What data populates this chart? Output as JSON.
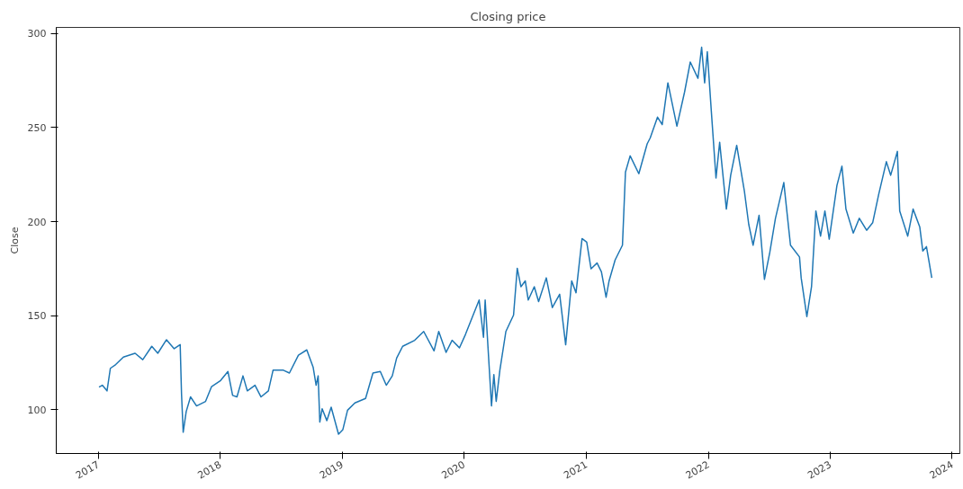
{
  "chart_data": {
    "type": "line",
    "title": "Closing price",
    "ylabel": "Close",
    "x": [
      "2017-01-03",
      "2017-01-13",
      "2017-01-27",
      "2017-02-06",
      "2017-02-22",
      "2017-03-17",
      "2017-04-21",
      "2017-05-14",
      "2017-06-10",
      "2017-06-28",
      "2017-07-24",
      "2017-08-16",
      "2017-09-03",
      "2017-09-07",
      "2017-09-12",
      "2017-09-21",
      "2017-10-04",
      "2017-10-22",
      "2017-11-18",
      "2017-12-06",
      "2018-01-02",
      "2018-01-24",
      "2018-02-07",
      "2018-02-20",
      "2018-03-10",
      "2018-03-23",
      "2018-04-15",
      "2018-05-03",
      "2018-05-25",
      "2018-06-08",
      "2018-07-09",
      "2018-07-27",
      "2018-08-23",
      "2018-09-17",
      "2018-10-06",
      "2018-10-15",
      "2018-10-21",
      "2018-10-26",
      "2018-11-02",
      "2018-11-16",
      "2018-11-29",
      "2018-12-21",
      "2019-01-03",
      "2019-01-17",
      "2019-02-08",
      "2019-03-12",
      "2019-04-03",
      "2019-04-25",
      "2019-05-13",
      "2019-05-31",
      "2019-06-13",
      "2019-07-01",
      "2019-08-06",
      "2019-09-02",
      "2019-10-03",
      "2019-10-17",
      "2019-11-08",
      "2019-11-26",
      "2019-12-18",
      "2020-01-05",
      "2020-01-28",
      "2020-02-15",
      "2020-02-28",
      "2020-03-04",
      "2020-03-23",
      "2020-03-30",
      "2020-04-06",
      "2020-04-17",
      "2020-05-05",
      "2020-05-28",
      "2020-06-08",
      "2020-06-19",
      "2020-07-02",
      "2020-07-11",
      "2020-07-29",
      "2020-08-11",
      "2020-09-03",
      "2020-09-21",
      "2020-10-13",
      "2020-10-31",
      "2020-11-18",
      "2020-12-01",
      "2020-12-19",
      "2021-01-02",
      "2021-01-15",
      "2021-02-02",
      "2021-02-15",
      "2021-03-01",
      "2021-03-10",
      "2021-03-28",
      "2021-04-19",
      "2021-04-28",
      "2021-05-12",
      "2021-06-07",
      "2021-07-02",
      "2021-07-11",
      "2021-08-02",
      "2021-08-16",
      "2021-09-02",
      "2021-09-29",
      "2021-10-22",
      "2021-11-08",
      "2021-12-01",
      "2021-12-12",
      "2021-12-21",
      "2021-12-29",
      "2022-01-10",
      "2022-01-24",
      "2022-02-04",
      "2022-02-24",
      "2022-03-09",
      "2022-03-27",
      "2022-04-19",
      "2022-05-02",
      "2022-05-15",
      "2022-06-02",
      "2022-06-18",
      "2022-07-04",
      "2022-07-21",
      "2022-08-15",
      "2022-09-04",
      "2022-10-01",
      "2022-10-06",
      "2022-10-23",
      "2022-11-06",
      "2022-11-19",
      "2022-12-03",
      "2022-12-16",
      "2022-12-29",
      "2023-01-21",
      "2023-02-05",
      "2023-02-17",
      "2023-03-11",
      "2023-03-29",
      "2023-04-20",
      "2023-05-08",
      "2023-05-26",
      "2023-06-18",
      "2023-07-01",
      "2023-07-21",
      "2023-07-28",
      "2023-08-21",
      "2023-09-06",
      "2023-09-26",
      "2023-10-05",
      "2023-10-16",
      "2023-10-23",
      "2023-11-01"
    ],
    "series": [
      {
        "color": "#1f77b4",
        "values": [
          112,
          113,
          110,
          122,
          124,
          128,
          130,
          126.6,
          133.7,
          130,
          137.2,
          132.4,
          134.6,
          108.5,
          88,
          99,
          106.8,
          102,
          104.4,
          112.3,
          115.5,
          120.3,
          107.6,
          106.8,
          118,
          110,
          113,
          106.8,
          110,
          121,
          121,
          119.5,
          129,
          131.8,
          122.6,
          113,
          118,
          93.4,
          100.5,
          94.2,
          101.3,
          87,
          89.4,
          99.7,
          103.6,
          106,
          119.5,
          120.3,
          113,
          118,
          127.4,
          133.7,
          136.9,
          141.6,
          131.3,
          141.6,
          130.5,
          136.9,
          132.9,
          140,
          150.3,
          158.3,
          138.5,
          158.3,
          102,
          118.7,
          104.4,
          121,
          141.6,
          150.3,
          175.2,
          165.4,
          168.5,
          158.3,
          165.4,
          157.5,
          170.1,
          154.3,
          161.4,
          134.5,
          168.5,
          162.2,
          191,
          189.1,
          174.9,
          178,
          173.3,
          159.8,
          168.5,
          179.6,
          187.5,
          226.3,
          235,
          225.5,
          241.4,
          244.5,
          255.6,
          251.6,
          273.8,
          250.8,
          269,
          284.9,
          276.2,
          292.8,
          273.8,
          290.4,
          258.8,
          223.2,
          242.2,
          206.7,
          224.7,
          240.6,
          216.2,
          198.6,
          187.5,
          203.4,
          169.3,
          183.6,
          201.8,
          220.8,
          187.5,
          181.2,
          170.1,
          149.5,
          165.4,
          205.7,
          192.3,
          205.7,
          190.7,
          219.2,
          229.5,
          206.7,
          193.9,
          201.8,
          195.4,
          199.4,
          214.4,
          231.9,
          224.7,
          237.4,
          205.7,
          192.3,
          206.7,
          197.2,
          184.4,
          186.7,
          179.6,
          170.1
        ]
      }
    ],
    "xlim": [
      "2016-08-28",
      "2024-01-24"
    ],
    "xticks": [
      "2017",
      "2018",
      "2019",
      "2020",
      "2021",
      "2022",
      "2023",
      "2024"
    ],
    "ylim": [
      76.7,
      303.3
    ],
    "yticks": [
      100,
      150,
      200,
      250,
      300
    ],
    "grid": false
  }
}
